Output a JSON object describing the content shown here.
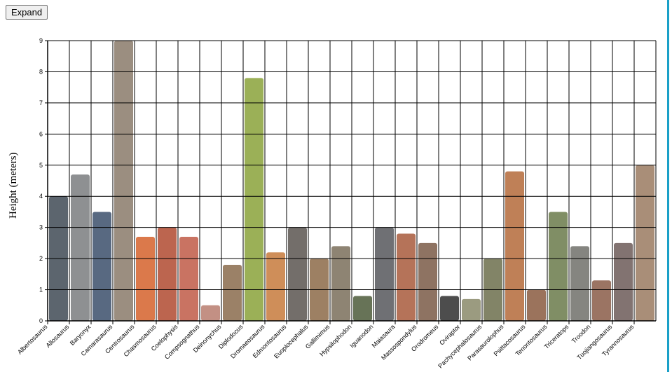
{
  "controls": {
    "expand_label": "Expand"
  },
  "chart_data": {
    "type": "bar",
    "title": "",
    "xlabel": "",
    "ylabel": "Height (meters)",
    "ylim": [
      0,
      9
    ],
    "yticks": [
      0,
      1,
      2,
      3,
      4,
      5,
      6,
      7,
      8,
      9
    ],
    "grid": true,
    "categories": [
      "Albertosaurus",
      "Allosaurus",
      "Baryonyx",
      "Camarasaurus",
      "Centrosaurus",
      "Chasmosaurus",
      "Coelophysis",
      "Compsognathus",
      "Deinonychus",
      "Diplodocus",
      "Dromaeosaurus",
      "Edmontosaurus",
      "Euoplocephalus",
      "Gallimimus",
      "Hypsilophodon",
      "Iguanodon",
      "Maiasaura",
      "Massospondylus",
      "Orodromeus",
      "Oviraptor",
      "Pachycephalosaurus",
      "Parasaurolophus",
      "Psittacosaurus",
      "Tenontosaurus",
      "Triceratops",
      "Troodon",
      "Tuojiangosaurus",
      "Tyrannosaurus"
    ],
    "series": [
      {
        "values": [
          4.0,
          4.7,
          3.5,
          9.0,
          2.7,
          3.0,
          2.7,
          0.5,
          1.8,
          7.8,
          2.2,
          3.0,
          2.0,
          2.4,
          0.8,
          3.0,
          2.8,
          2.5,
          0.8,
          0.7,
          2.0,
          4.8,
          1.0,
          3.5,
          2.4,
          1.3,
          2.5,
          5.0
        ],
        "colors": [
          "#3f4a55",
          "#7a7d7f",
          "#3b4f6b",
          "#8a7a6a",
          "#d5622b",
          "#b04a30",
          "#c05a46",
          "#b87d6f",
          "#8a6b4c",
          "#8aa23a",
          "#c77a3c",
          "#5a5550",
          "#8c6a48",
          "#7a6e5a",
          "#4c5a3a",
          "#56575c",
          "#a85a3c",
          "#7a5a46",
          "#2e2e2e",
          "#8a8a6a",
          "#6c6e4c",
          "#b46a3a",
          "#8a5a40",
          "#6a7a4a",
          "#70706a",
          "#8a5c48",
          "#6c5a58",
          "#9a7a60"
        ]
      }
    ]
  }
}
